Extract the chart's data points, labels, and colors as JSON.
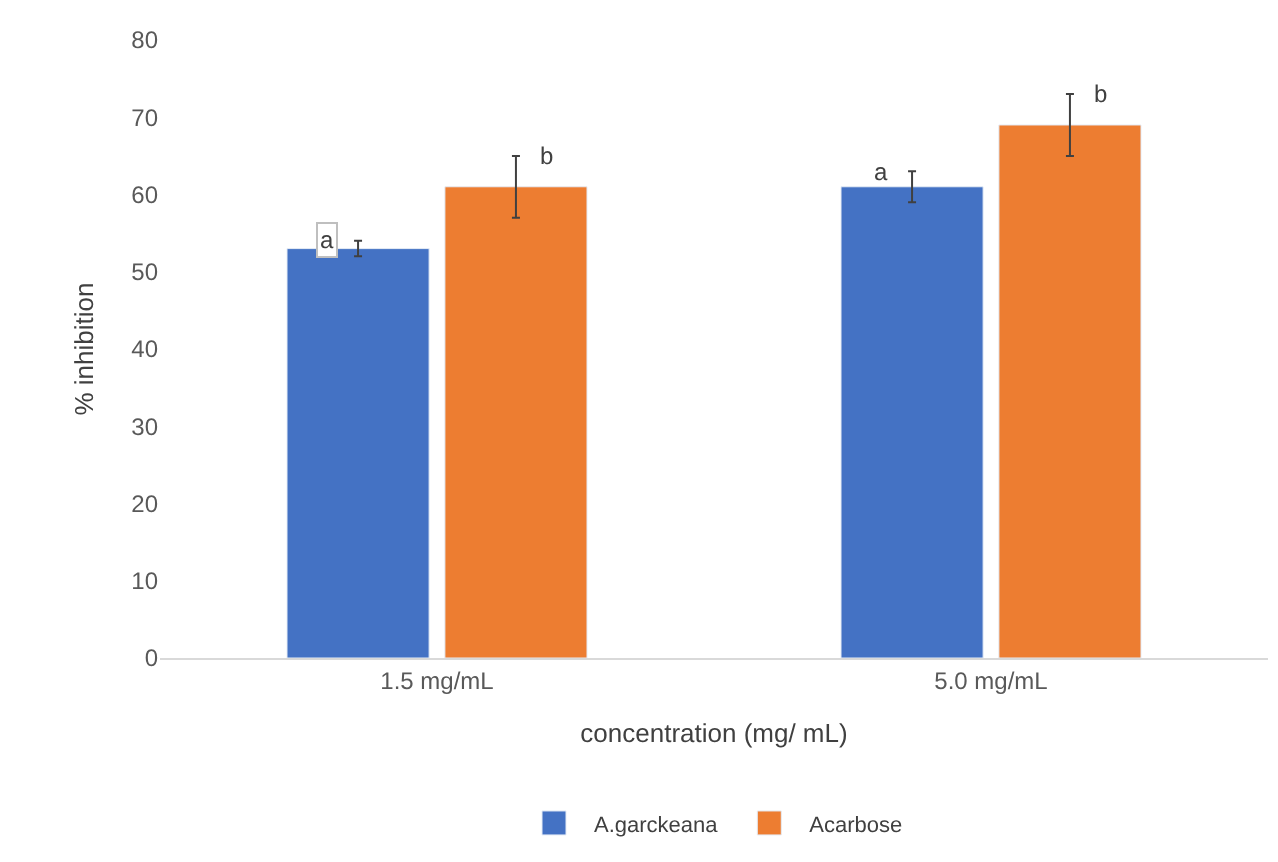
{
  "chart_data": {
    "type": "bar",
    "xlabel": "concentration (mg/ mL)",
    "ylabel": "% inhibition",
    "categories": [
      "1.5 mg/mL",
      "5.0 mg/mL"
    ],
    "series": [
      {
        "name": "A.garckeana",
        "color": "#4472c4",
        "values": [
          53,
          61
        ],
        "errors": [
          1,
          2
        ]
      },
      {
        "name": "Acarbose",
        "color": "#ed7d31",
        "values": [
          61,
          69
        ],
        "errors": [
          4,
          4
        ]
      }
    ],
    "ylim": [
      0,
      80
    ],
    "yticks": [
      0,
      10,
      20,
      30,
      40,
      50,
      60,
      70,
      80
    ],
    "grid": false,
    "legend": "bottom",
    "annotations": [
      "a",
      "b",
      "a",
      "b"
    ]
  }
}
